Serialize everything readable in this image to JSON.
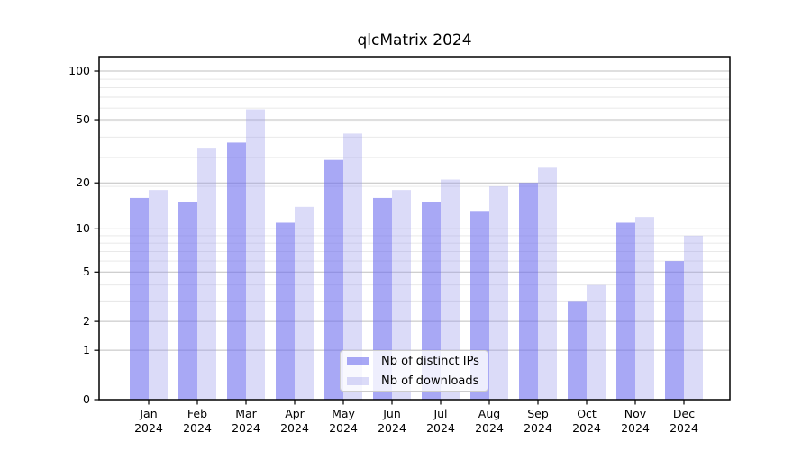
{
  "chart_data": {
    "type": "bar",
    "title": "qlcMatrix 2024",
    "categories": [
      "Jan",
      "Feb",
      "Mar",
      "Apr",
      "May",
      "Jun",
      "Jul",
      "Aug",
      "Sep",
      "Oct",
      "Nov",
      "Dec"
    ],
    "category_year": "2024",
    "series": [
      {
        "name": "Nb of distinct IPs",
        "values": [
          16,
          15,
          36,
          11,
          28,
          16,
          15,
          13,
          20,
          3,
          11,
          6
        ],
        "color": "rgba(110,110,238,0.60)"
      },
      {
        "name": "Nb of downloads",
        "values": [
          18,
          33,
          58,
          14,
          41,
          18,
          21,
          19,
          25,
          4,
          12,
          9
        ],
        "color": "rgba(152,152,235,0.35)"
      }
    ],
    "y_scale": "log10(1+v)",
    "y_ticks": [
      0,
      1,
      2,
      5,
      10,
      20,
      50,
      100
    ],
    "y_minor_gridlines_v_plus_1": [
      4,
      5,
      7,
      8,
      9,
      10,
      20,
      30,
      40,
      50,
      60,
      70,
      80,
      90
    ],
    "ylim": [
      0,
      122.7
    ],
    "grid": true,
    "legend_position": "lower center"
  },
  "colors": {
    "grid_major": "#bfbfbf",
    "grid_minor": "#e6e6e6",
    "axis_frame": "#000000",
    "tick": "#000000",
    "text": "#000000",
    "background": "#ffffff"
  }
}
